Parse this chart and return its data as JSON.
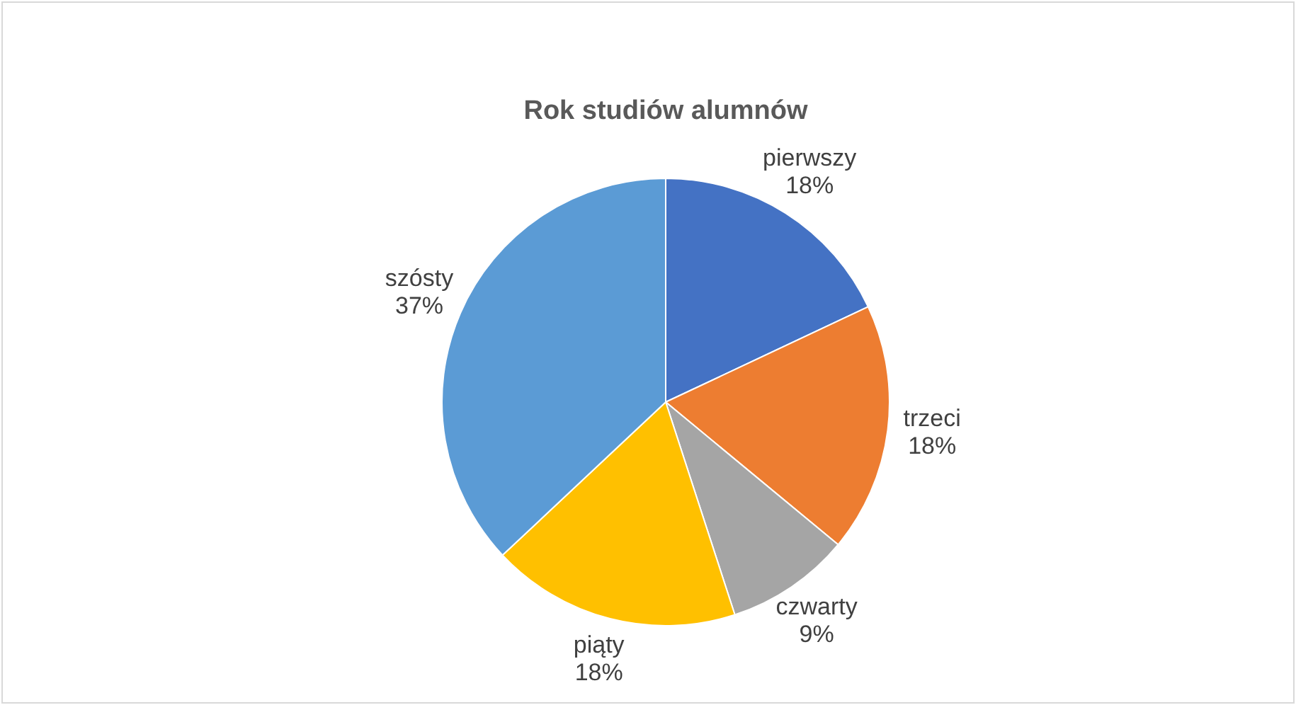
{
  "chart_data": {
    "type": "pie",
    "title": "Rok studiów alumnów",
    "categories": [
      "pierwszy",
      "trzeci",
      "czwarty",
      "piąty",
      "szósty"
    ],
    "values": [
      18,
      18,
      9,
      18,
      37
    ],
    "value_labels": [
      "18%",
      "18%",
      "9%",
      "18%",
      "37%"
    ],
    "colors": [
      "#4472c4",
      "#ed7d31",
      "#a5a5a5",
      "#ffc000",
      "#5b9bd5"
    ],
    "legend": false
  }
}
